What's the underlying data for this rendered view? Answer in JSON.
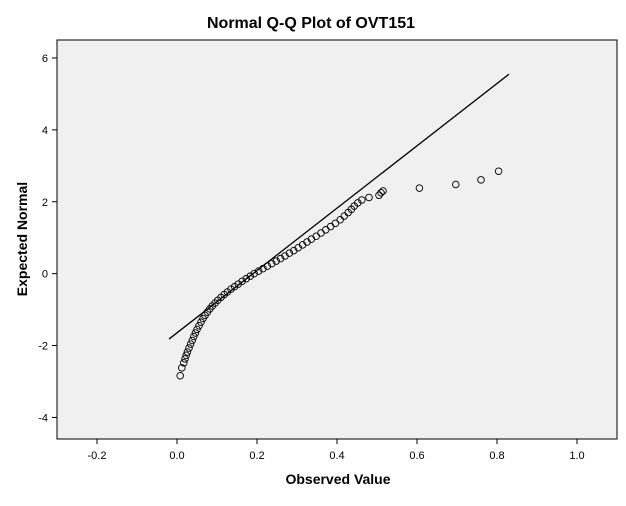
{
  "chart_data": {
    "type": "scatter",
    "title": "Normal Q-Q Plot of OVT151",
    "xlabel": "Observed Value",
    "ylabel": "Expected Normal",
    "xlim": [
      -0.3,
      1.1
    ],
    "ylim": [
      -4.6,
      6.5
    ],
    "x_ticks": [
      -0.2,
      0.0,
      0.2,
      0.4,
      0.6,
      0.8,
      1.0
    ],
    "x_tick_labels": [
      "-0.2",
      "0.0",
      "0.2",
      "0.4",
      "0.6",
      "0.8",
      "1.0"
    ],
    "y_ticks": [
      -4,
      -2,
      0,
      2,
      4,
      6
    ],
    "y_tick_labels": [
      "-4",
      "-2",
      "0",
      "2",
      "4",
      "6"
    ],
    "grid": false,
    "colors": {
      "plot_background": "#f0f0f0",
      "marker_stroke": "#000000",
      "line": "#000000"
    },
    "reference_line": {
      "x": [
        -0.02,
        0.83
      ],
      "y": [
        -1.82,
        5.55
      ]
    },
    "series": [
      {
        "values": [
          [
            0.008,
            -2.84
          ],
          [
            0.012,
            -2.62
          ],
          [
            0.017,
            -2.48
          ],
          [
            0.02,
            -2.37
          ],
          [
            0.023,
            -2.27
          ],
          [
            0.026,
            -2.18
          ],
          [
            0.03,
            -2.07
          ],
          [
            0.034,
            -1.96
          ],
          [
            0.038,
            -1.86
          ],
          [
            0.042,
            -1.75
          ],
          [
            0.046,
            -1.65
          ],
          [
            0.05,
            -1.55
          ],
          [
            0.055,
            -1.45
          ],
          [
            0.06,
            -1.35
          ],
          [
            0.065,
            -1.25
          ],
          [
            0.07,
            -1.16
          ],
          [
            0.076,
            -1.07
          ],
          [
            0.082,
            -0.98
          ],
          [
            0.088,
            -0.9
          ],
          [
            0.095,
            -0.82
          ],
          [
            0.102,
            -0.74
          ],
          [
            0.11,
            -0.66
          ],
          [
            0.118,
            -0.58
          ],
          [
            0.126,
            -0.51
          ],
          [
            0.135,
            -0.43
          ],
          [
            0.144,
            -0.36
          ],
          [
            0.153,
            -0.29
          ],
          [
            0.163,
            -0.21
          ],
          [
            0.173,
            -0.14
          ],
          [
            0.183,
            -0.07
          ],
          [
            0.193,
            0.0
          ],
          [
            0.204,
            0.07
          ],
          [
            0.215,
            0.14
          ],
          [
            0.226,
            0.21
          ],
          [
            0.237,
            0.28
          ],
          [
            0.248,
            0.35
          ],
          [
            0.259,
            0.42
          ],
          [
            0.27,
            0.49
          ],
          [
            0.281,
            0.57
          ],
          [
            0.292,
            0.64
          ],
          [
            0.303,
            0.72
          ],
          [
            0.314,
            0.8
          ],
          [
            0.325,
            0.88
          ],
          [
            0.336,
            0.96
          ],
          [
            0.348,
            1.04
          ],
          [
            0.36,
            1.13
          ],
          [
            0.372,
            1.22
          ],
          [
            0.384,
            1.31
          ],
          [
            0.396,
            1.4
          ],
          [
            0.408,
            1.5
          ],
          [
            0.418,
            1.6
          ],
          [
            0.428,
            1.7
          ],
          [
            0.436,
            1.79
          ],
          [
            0.443,
            1.88
          ],
          [
            0.452,
            1.97
          ],
          [
            0.462,
            2.05
          ],
          [
            0.48,
            2.12
          ],
          [
            0.505,
            2.18
          ],
          [
            0.51,
            2.25
          ],
          [
            0.515,
            2.3
          ],
          [
            0.606,
            2.38
          ],
          [
            0.697,
            2.48
          ],
          [
            0.76,
            2.61
          ],
          [
            0.804,
            2.85
          ]
        ]
      }
    ]
  }
}
